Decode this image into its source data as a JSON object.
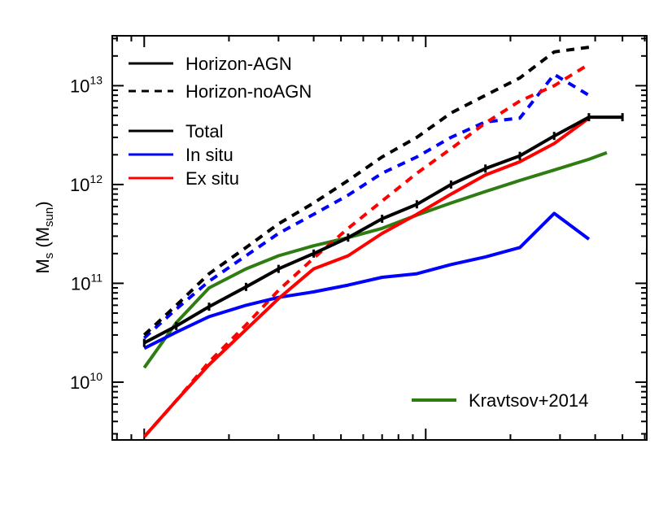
{
  "chart_data": {
    "type": "line",
    "ylabel": {
      "main": "M",
      "sub1": "s",
      "paren_open": " (M",
      "sub2": "sun",
      "paren_close": ")"
    },
    "yscale": "log",
    "xscale": "log",
    "ylim": [
      2600000000.0,
      32000000000000.0
    ],
    "yticks": [
      {
        "value": 10000000000.0,
        "base": "10",
        "exp": "10"
      },
      {
        "value": 100000000000.0,
        "base": "10",
        "exp": "11"
      },
      {
        "value": 1000000000000.0,
        "base": "10",
        "exp": "12"
      },
      {
        "value": 10000000000000.0,
        "base": "10",
        "exp": "13"
      }
    ],
    "legend_style": [
      {
        "label": "Horizon-AGN",
        "dash": "solid",
        "color": "#000000"
      },
      {
        "label": "Horizon-noAGN",
        "dash": "dashed",
        "color": "#000000"
      }
    ],
    "legend_component": [
      {
        "label": "Total",
        "color": "#000000"
      },
      {
        "label": "In situ",
        "color": "#0000ff"
      },
      {
        "label": "Ex situ",
        "color": "#ff0000"
      }
    ],
    "legend_reference": {
      "label": "Kravtsov+2014",
      "color": "#2e7d12"
    },
    "series": [
      {
        "name": "Total",
        "model": "Horizon-AGN",
        "color": "#000000",
        "dash": "solid",
        "x": [
          1,
          1.3,
          1.7,
          2.3,
          3,
          4,
          5.3,
          7,
          9.3,
          12.3,
          16.3,
          21.6,
          28.6,
          38,
          50
        ],
        "y": [
          25000000000.0,
          37000000000.0,
          58000000000.0,
          92000000000.0,
          140000000000.0,
          200000000000.0,
          290000000000.0,
          450000000000.0,
          630000000000.0,
          1000000000000.0,
          1450000000000.0,
          1950000000000.0,
          3100000000000.0,
          4800000000000.0,
          4800000000000.0
        ]
      },
      {
        "name": "In situ",
        "model": "Horizon-AGN",
        "color": "#0000ff",
        "dash": "solid",
        "x": [
          1,
          1.3,
          1.7,
          2.3,
          3,
          4,
          5.3,
          7,
          9.3,
          12.3,
          16.3,
          21.6,
          28.6,
          38
        ],
        "y": [
          22000000000.0,
          32000000000.0,
          46000000000.0,
          60000000000.0,
          72000000000.0,
          82000000000.0,
          96000000000.0,
          115000000000.0,
          125000000000.0,
          155000000000.0,
          185000000000.0,
          230000000000.0,
          510000000000.0,
          280000000000.0
        ]
      },
      {
        "name": "Ex situ",
        "model": "Horizon-AGN",
        "color": "#ff0000",
        "dash": "solid",
        "x": [
          1,
          1.3,
          1.7,
          2.3,
          3,
          4,
          5.3,
          7,
          9.3,
          12.3,
          16.3,
          21.6,
          28.6,
          38
        ],
        "y": [
          2800000000.0,
          6500000000.0,
          15000000000.0,
          34000000000.0,
          70000000000.0,
          140000000000.0,
          190000000000.0,
          320000000000.0,
          500000000000.0,
          800000000000.0,
          1250000000000.0,
          1700000000000.0,
          2600000000000.0,
          4700000000000.0
        ]
      },
      {
        "name": "Total",
        "model": "Horizon-noAGN",
        "color": "#000000",
        "dash": "dashed",
        "x": [
          1,
          1.3,
          1.7,
          2.3,
          3,
          4,
          5.3,
          7,
          9.3,
          12.3,
          16.3,
          21.6,
          28.6,
          38
        ],
        "y": [
          30000000000.0,
          60000000000.0,
          125000000000.0,
          230000000000.0,
          400000000000.0,
          650000000000.0,
          1100000000000.0,
          1900000000000.0,
          3000000000000.0,
          5300000000000.0,
          8000000000000.0,
          12000000000000.0,
          22000000000000.0,
          24500000000000.0
        ]
      },
      {
        "name": "In situ",
        "model": "Horizon-noAGN",
        "color": "#0000ff",
        "dash": "dashed",
        "x": [
          1,
          1.3,
          1.7,
          2.3,
          3,
          4,
          5.3,
          7,
          9.3,
          12.3,
          16.3,
          21.6,
          28.6,
          38
        ],
        "y": [
          28000000000.0,
          55000000000.0,
          105000000000.0,
          190000000000.0,
          320000000000.0,
          500000000000.0,
          780000000000.0,
          1300000000000.0,
          1900000000000.0,
          3000000000000.0,
          4300000000000.0,
          4700000000000.0,
          13000000000000.0,
          8000000000000.0
        ]
      },
      {
        "name": "Ex situ",
        "model": "Horizon-noAGN",
        "color": "#ff0000",
        "dash": "dashed",
        "x": [
          1,
          1.3,
          1.7,
          2.3,
          3,
          4,
          5.3,
          7,
          9.3,
          12.3,
          16.3,
          21.6,
          28.6,
          38
        ],
        "y": [
          2800000000.0,
          6500000000.0,
          16000000000.0,
          38000000000.0,
          85000000000.0,
          180000000000.0,
          360000000000.0,
          680000000000.0,
          1300000000000.0,
          2300000000000.0,
          4200000000000.0,
          7000000000000.0,
          10000000000000.0,
          16500000000000.0
        ]
      },
      {
        "name": "Kravtsov+2014",
        "model": "reference",
        "color": "#2e7d12",
        "dash": "solid",
        "x": [
          1,
          1.3,
          1.7,
          2.3,
          3,
          4,
          5.3,
          7,
          9.3,
          12.3,
          16.3,
          21.6,
          28.6,
          38,
          44
        ],
        "y": [
          14000000000.0,
          40000000000.0,
          90000000000.0,
          140000000000.0,
          190000000000.0,
          240000000000.0,
          290000000000.0,
          360000000000.0,
          490000000000.0,
          650000000000.0,
          850000000000.0,
          1100000000000.0,
          1400000000000.0,
          1800000000000.0,
          2100000000000.0
        ]
      }
    ]
  }
}
